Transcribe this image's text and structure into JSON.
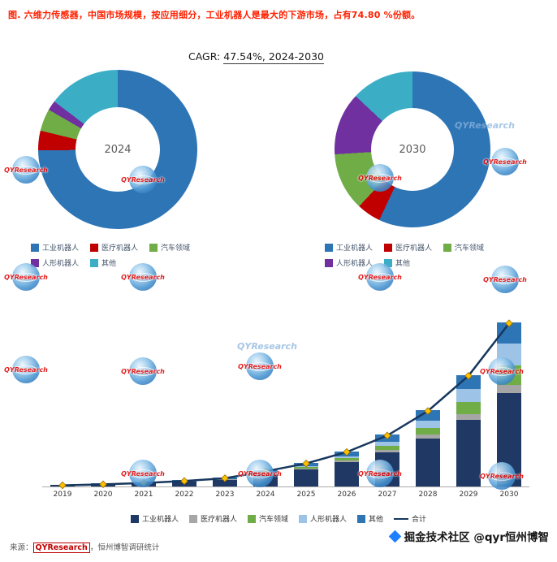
{
  "title": "图. 六维力传感器，中国市场规模，按应用细分，工业机器人是最大的下游市场，占有74.80 %份额。",
  "cagr": {
    "label": "CAGR:",
    "value": "47.54%, 2024-2030"
  },
  "watermark": {
    "text": "QYResearch"
  },
  "credit": "掘金技术社区 @qyr恒州博智",
  "source": {
    "prefix": "来源：",
    "publisher": "QYResearch",
    "suffix": "，恒州博智调研统计"
  },
  "chart_data": [
    {
      "type": "pie",
      "donut": true,
      "title": "2024",
      "center_label": "2024",
      "labels": [
        "工业机器人",
        "医疗机器人",
        "汽车领域",
        "人形机器人",
        "其他"
      ],
      "values": [
        74.8,
        4.0,
        4.5,
        2.0,
        14.7
      ],
      "colors": [
        "#2E75B6",
        "#C00000",
        "#70AD47",
        "#7030A0",
        "#3BAEC6"
      ],
      "legend_position": "bottom"
    },
    {
      "type": "pie",
      "donut": true,
      "title": "2030",
      "center_label": "2030",
      "labels": [
        "工业机器人",
        "医疗机器人",
        "汽车领域",
        "人形机器人",
        "其他"
      ],
      "values": [
        57.0,
        5.0,
        12.0,
        13.0,
        13.0
      ],
      "colors": [
        "#2E75B6",
        "#C00000",
        "#70AD47",
        "#7030A0",
        "#3BAEC6"
      ],
      "legend_position": "bottom"
    },
    {
      "type": "bar",
      "subtype": "stacked-with-line",
      "title": "",
      "xlabel": "",
      "ylabel": "",
      "grid": false,
      "legend_position": "bottom",
      "ylim": [
        0,
        105
      ],
      "categories": [
        "2019",
        "2020",
        "2021",
        "2022",
        "2023",
        "2024",
        "2025",
        "2026",
        "2027",
        "2028",
        "2029",
        "2030"
      ],
      "series": [
        {
          "name": "工业机器人",
          "color": "#1F3864",
          "values": [
            0.9,
            1.35,
            1.95,
            2.8,
            4.1,
            7.3,
            10.4,
            14.8,
            20.8,
            29.3,
            40.8,
            57.0
          ]
        },
        {
          "name": "医疗机器人",
          "color": "#A6A6A6",
          "values": [
            0.05,
            0.07,
            0.1,
            0.15,
            0.22,
            0.39,
            0.61,
            0.95,
            1.45,
            2.2,
            3.3,
            5.0
          ]
        },
        {
          "name": "汽车领域",
          "color": "#70AD47",
          "values": [
            0.05,
            0.08,
            0.12,
            0.17,
            0.25,
            0.44,
            0.83,
            1.5,
            2.6,
            4.4,
            7.2,
            12.0
          ]
        },
        {
          "name": "人形机器人",
          "color": "#9DC3E6",
          "values": [
            0.02,
            0.03,
            0.05,
            0.08,
            0.12,
            0.19,
            0.55,
            1.2,
            2.4,
            4.4,
            8.0,
            13.0
          ]
        },
        {
          "name": "其他",
          "color": "#2E75B6",
          "values": [
            0.18,
            0.27,
            0.38,
            0.6,
            0.81,
            1.42,
            2.1,
            3.05,
            4.3,
            6.2,
            8.7,
            13.0
          ]
        }
      ],
      "line_series": {
        "name": "合计",
        "color": "#17375E",
        "marker": "diamond",
        "marker_color": "#FFC000",
        "values": [
          1.2,
          1.8,
          2.6,
          3.8,
          5.5,
          9.74,
          14.49,
          21.5,
          31.55,
          46.5,
          68.0,
          100.0
        ]
      }
    }
  ]
}
